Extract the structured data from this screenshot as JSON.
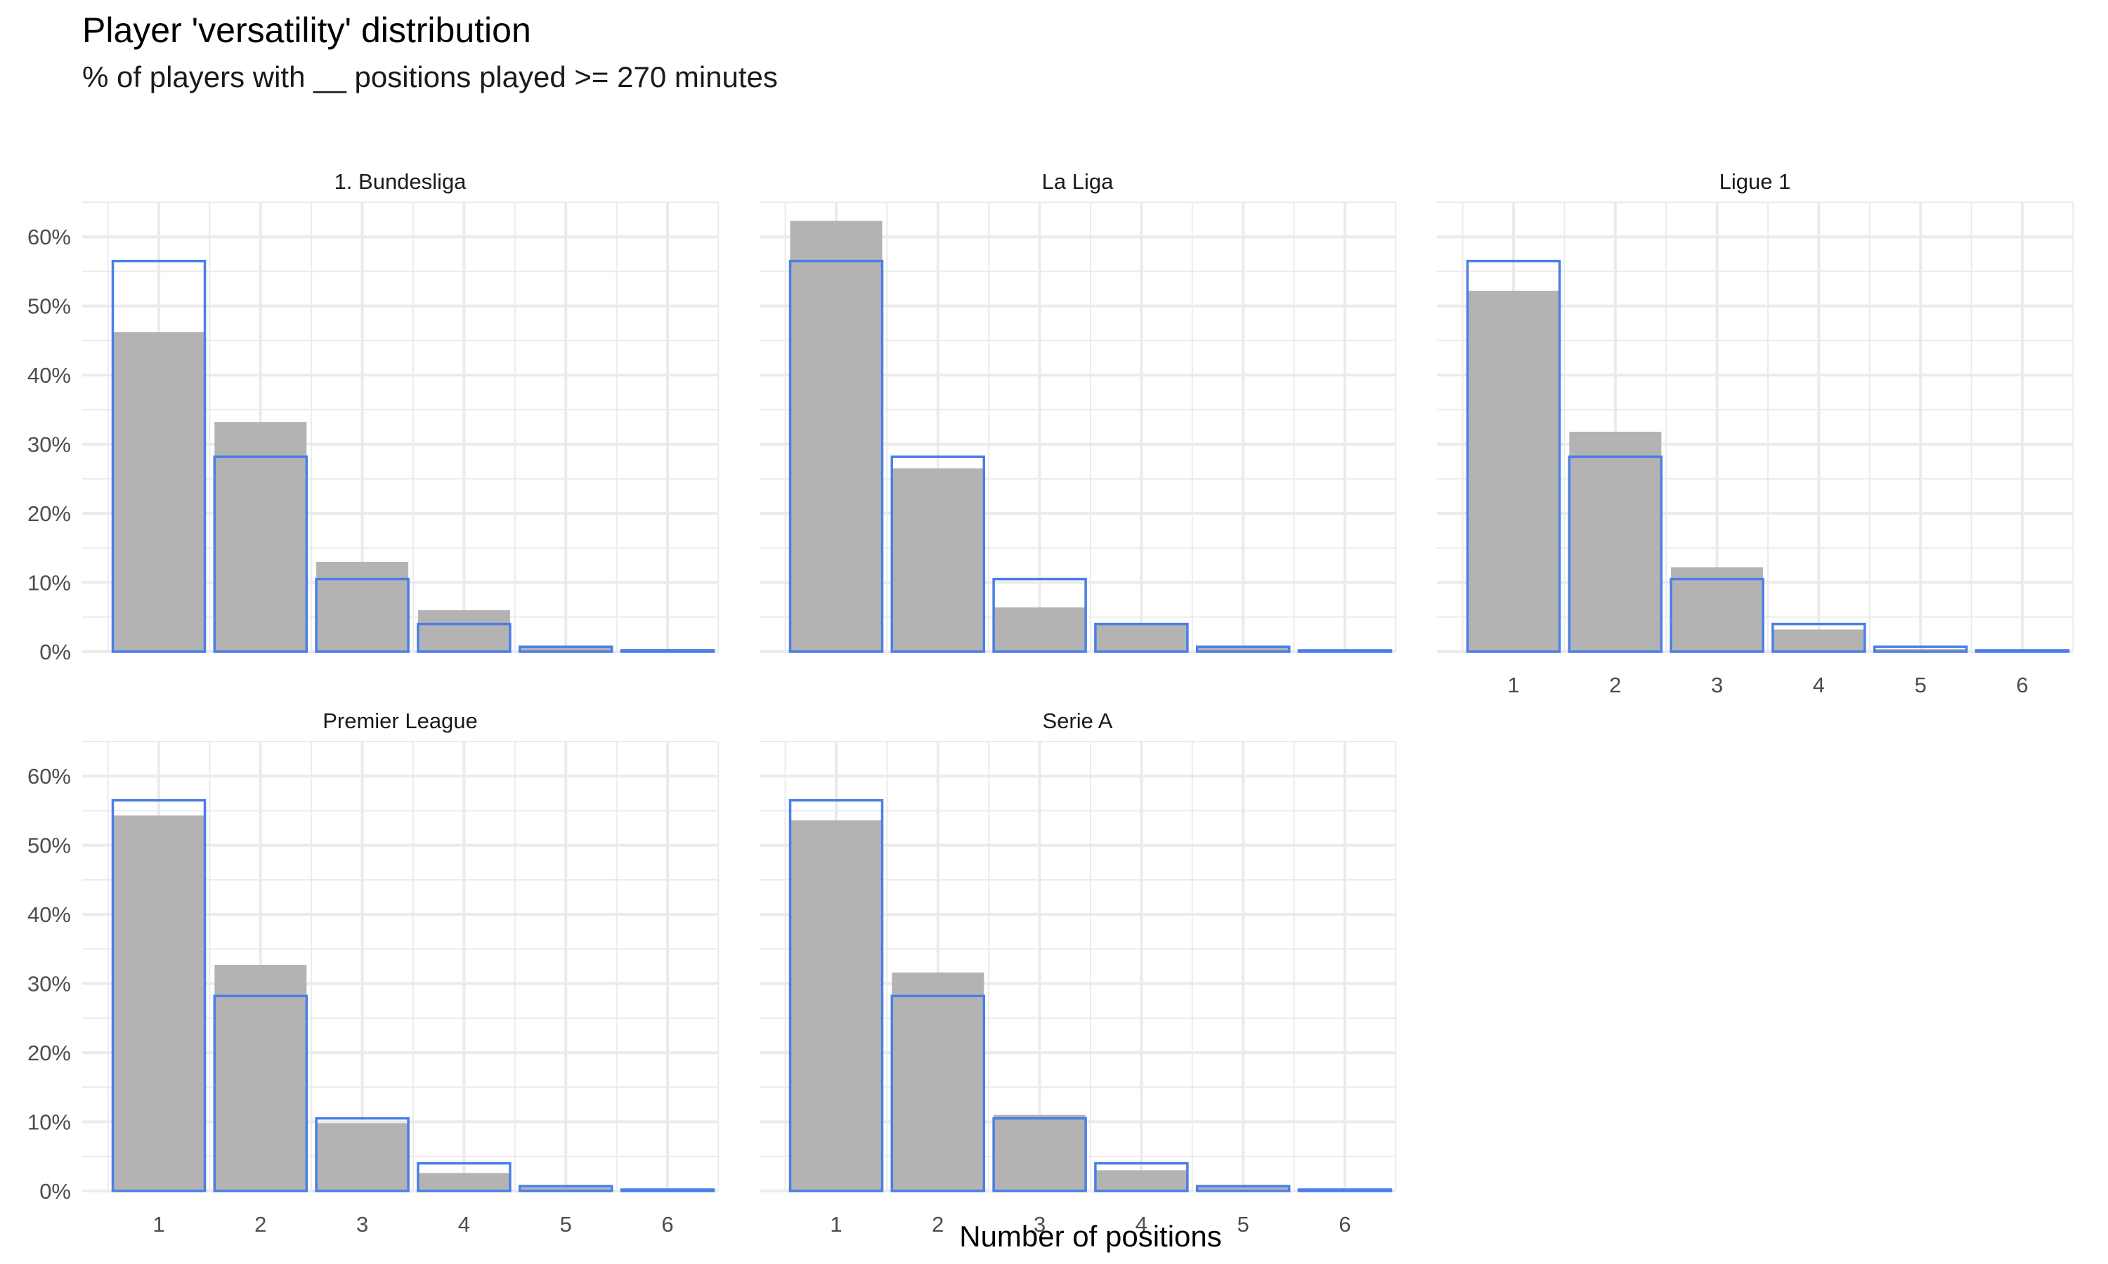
{
  "chart_data": {
    "type": "bar",
    "title": "Player 'versatility' distribution",
    "subtitle": "% of players with __ positions played >= 270 minutes",
    "xlabel": "Number of positions",
    "ylabel": "",
    "categories": [
      "1",
      "2",
      "3",
      "4",
      "5",
      "6"
    ],
    "ylim": [
      0,
      0.65
    ],
    "y_ticks": [
      0,
      0.1,
      0.2,
      0.3,
      0.4,
      0.5,
      0.6
    ],
    "y_tick_labels": [
      "0%",
      "10%",
      "20%",
      "30%",
      "40%",
      "50%",
      "60%"
    ],
    "grid": true,
    "facet_layout": "3 columns, 2 rows",
    "colors": {
      "league_fill": "#b3b3b3",
      "overall_outline": "#4a7fe6",
      "grid": "#ebebeb"
    },
    "overall_values": [
      0.565,
      0.282,
      0.105,
      0.04,
      0.007,
      0.002
    ],
    "facets": [
      {
        "name": "1. Bundesliga",
        "values": [
          0.462,
          0.332,
          0.13,
          0.06,
          0.007,
          0.004
        ]
      },
      {
        "name": "La Liga",
        "values": [
          0.623,
          0.265,
          0.064,
          0.041,
          0.007,
          0.002
        ]
      },
      {
        "name": "Ligue 1",
        "values": [
          0.522,
          0.318,
          0.122,
          0.032,
          0.004,
          0.002
        ]
      },
      {
        "name": "Premier League",
        "values": [
          0.543,
          0.327,
          0.098,
          0.026,
          0.005,
          0.002
        ]
      },
      {
        "name": "Serie A",
        "values": [
          0.536,
          0.316,
          0.11,
          0.03,
          0.006,
          0.002
        ]
      }
    ]
  }
}
